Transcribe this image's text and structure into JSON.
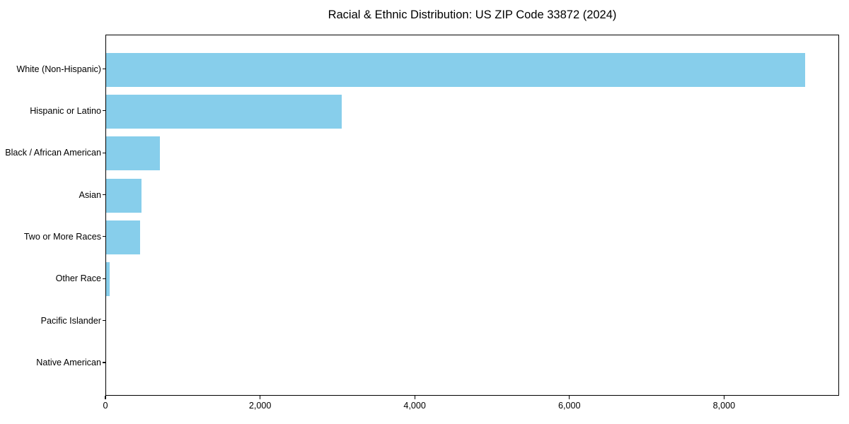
{
  "chart_data": {
    "type": "bar",
    "orientation": "horizontal",
    "title": "Racial & Ethnic Distribution: US ZIP Code 33872 (2024)",
    "categories": [
      "White (Non-Hispanic)",
      "Hispanic or Latino",
      "Black / African American",
      "Asian",
      "Two or More Races",
      "Other Race",
      "Pacific Islander",
      "Native American"
    ],
    "values": [
      9035,
      3045,
      695,
      460,
      440,
      45,
      0,
      0
    ],
    "xlabel": "",
    "ylabel": "",
    "xlim": [
      0,
      9488
    ],
    "xticks": [
      0,
      2000,
      4000,
      6000,
      8000
    ],
    "xtick_labels": [
      "0",
      "2,000",
      "4,000",
      "6,000",
      "8,000"
    ],
    "bar_color": "#87CEEB",
    "text_color": "#000000",
    "spine_color": "#000000",
    "grid": false,
    "legend": "none"
  }
}
